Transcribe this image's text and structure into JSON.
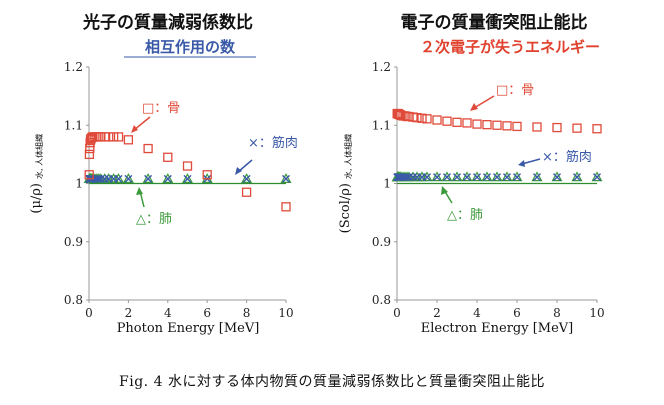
{
  "caption": "Fig. 4 水に対する体内物質の質量減弱係数比と質量衝突阻止能比",
  "colors": {
    "bone": "#e04a3a",
    "muscle": "#3a5aa8",
    "lung": "#3a9a3a",
    "subtitle_left": "#3a5aa8",
    "subtitle_right": "#e0402e",
    "reference_line": "#2e8b2e"
  },
  "chart_data": [
    {
      "type": "scatter",
      "title": "光子の質量減弱係数比",
      "subtitle": "相互作用の数",
      "xlabel": "Photon Energy [MeV]",
      "ylabel": "(μ/ρ)",
      "ylabel_subscript": "水, 人体組織",
      "xlim": [
        0,
        10
      ],
      "ylim": [
        0.8,
        1.2
      ],
      "xticks": [
        "0",
        "2",
        "4",
        "6",
        "8",
        "10"
      ],
      "yticks": [
        "0.8",
        "0.9",
        "1",
        "1.1",
        "1.2"
      ],
      "grid": false,
      "reference_line": 1.0,
      "series": [
        {
          "name": "骨",
          "marker": "square",
          "color": "#e04a3a",
          "x": [
            0.01,
            0.02,
            0.04,
            0.06,
            0.08,
            0.1,
            0.15,
            0.2,
            0.3,
            0.4,
            0.5,
            0.6,
            0.8,
            1.0,
            1.25,
            1.5,
            2.0,
            3.0,
            4.0,
            5.0,
            6.0,
            8.0,
            10.0
          ],
          "y": [
            1.015,
            1.05,
            1.06,
            1.07,
            1.075,
            1.077,
            1.079,
            1.08,
            1.08,
            1.08,
            1.08,
            1.08,
            1.08,
            1.08,
            1.08,
            1.08,
            1.075,
            1.06,
            1.045,
            1.03,
            1.015,
            0.985,
            0.96
          ]
        },
        {
          "name": "筋肉",
          "marker": "x",
          "color": "#3a5aa8",
          "x": [
            0.01,
            0.02,
            0.04,
            0.06,
            0.08,
            0.1,
            0.15,
            0.2,
            0.3,
            0.4,
            0.5,
            0.6,
            0.8,
            1.0,
            1.25,
            1.5,
            2.0,
            3.0,
            4.0,
            5.0,
            6.0,
            8.0,
            10.0
          ],
          "y": [
            1.008,
            1.008,
            1.008,
            1.008,
            1.008,
            1.008,
            1.008,
            1.008,
            1.008,
            1.008,
            1.008,
            1.008,
            1.008,
            1.008,
            1.008,
            1.008,
            1.008,
            1.008,
            1.008,
            1.008,
            1.008,
            1.008,
            1.008
          ]
        },
        {
          "name": "肺",
          "marker": "triangle",
          "color": "#3a9a3a",
          "x": [
            0.01,
            0.02,
            0.04,
            0.06,
            0.08,
            0.1,
            0.15,
            0.2,
            0.3,
            0.4,
            0.5,
            0.6,
            0.8,
            1.0,
            1.25,
            1.5,
            2.0,
            3.0,
            4.0,
            5.0,
            6.0,
            8.0,
            10.0
          ],
          "y": [
            1.008,
            1.008,
            1.008,
            1.008,
            1.008,
            1.008,
            1.008,
            1.008,
            1.008,
            1.008,
            1.008,
            1.008,
            1.008,
            1.008,
            1.008,
            1.008,
            1.008,
            1.008,
            1.008,
            1.008,
            1.008,
            1.008,
            1.008
          ]
        }
      ],
      "annotations": [
        {
          "text": "□：骨",
          "color": "#e04a3a"
        },
        {
          "text": "×：筋肉",
          "color": "#3a5aa8"
        },
        {
          "text": "△：肺",
          "color": "#3a9a3a"
        }
      ]
    },
    {
      "type": "scatter",
      "title": "電子の質量衝突阻止能比",
      "subtitle": "２次電子が失うエネルギー",
      "xlabel": "Electron Energy [MeV]",
      "ylabel": "(Scol/ρ)",
      "ylabel_subscript": "水, 人体組織",
      "xlim": [
        0,
        10
      ],
      "ylim": [
        0.8,
        1.2
      ],
      "xticks": [
        "0",
        "2",
        "4",
        "6",
        "8",
        "10"
      ],
      "yticks": [
        "0.8",
        "0.9",
        "1",
        "1.1",
        "1.2"
      ],
      "grid": false,
      "reference_line": 1.0,
      "series": [
        {
          "name": "骨",
          "marker": "square",
          "color": "#e04a3a",
          "x": [
            0.01,
            0.02,
            0.04,
            0.06,
            0.08,
            0.1,
            0.15,
            0.2,
            0.3,
            0.4,
            0.5,
            0.6,
            0.8,
            1.0,
            1.25,
            1.5,
            2.0,
            2.5,
            3.0,
            3.5,
            4.0,
            4.5,
            5.0,
            5.5,
            6.0,
            7.0,
            8.0,
            9.0,
            10.0
          ],
          "y": [
            1.12,
            1.12,
            1.12,
            1.12,
            1.119,
            1.119,
            1.118,
            1.117,
            1.116,
            1.116,
            1.115,
            1.115,
            1.114,
            1.113,
            1.112,
            1.111,
            1.109,
            1.107,
            1.105,
            1.104,
            1.102,
            1.101,
            1.1,
            1.099,
            1.098,
            1.097,
            1.096,
            1.095,
            1.094
          ]
        },
        {
          "name": "筋肉",
          "marker": "x",
          "color": "#3a5aa8",
          "x": [
            0.01,
            0.02,
            0.04,
            0.06,
            0.08,
            0.1,
            0.15,
            0.2,
            0.3,
            0.4,
            0.5,
            0.6,
            0.8,
            1.0,
            1.25,
            1.5,
            2.0,
            2.5,
            3.0,
            3.5,
            4.0,
            4.5,
            5.0,
            5.5,
            6.0,
            7.0,
            8.0,
            9.0,
            10.0
          ],
          "y": [
            1.011,
            1.011,
            1.011,
            1.011,
            1.011,
            1.011,
            1.011,
            1.011,
            1.011,
            1.011,
            1.011,
            1.011,
            1.011,
            1.011,
            1.011,
            1.011,
            1.011,
            1.011,
            1.011,
            1.011,
            1.011,
            1.011,
            1.011,
            1.011,
            1.011,
            1.011,
            1.011,
            1.011,
            1.011
          ]
        },
        {
          "name": "肺",
          "marker": "triangle",
          "color": "#3a9a3a",
          "x": [
            0.01,
            0.02,
            0.04,
            0.06,
            0.08,
            0.1,
            0.15,
            0.2,
            0.3,
            0.4,
            0.5,
            0.6,
            0.8,
            1.0,
            1.25,
            1.5,
            2.0,
            2.5,
            3.0,
            3.5,
            4.0,
            4.5,
            5.0,
            5.5,
            6.0,
            7.0,
            8.0,
            9.0,
            10.0
          ],
          "y": [
            1.011,
            1.011,
            1.011,
            1.011,
            1.011,
            1.011,
            1.011,
            1.011,
            1.011,
            1.011,
            1.011,
            1.011,
            1.011,
            1.011,
            1.011,
            1.011,
            1.011,
            1.011,
            1.011,
            1.011,
            1.011,
            1.011,
            1.011,
            1.011,
            1.011,
            1.011,
            1.011,
            1.011,
            1.011
          ]
        }
      ],
      "annotations": [
        {
          "text": "□：骨",
          "color": "#e04a3a"
        },
        {
          "text": "×：筋肉",
          "color": "#3a5aa8"
        },
        {
          "text": "△：肺",
          "color": "#3a9a3a"
        }
      ]
    }
  ]
}
